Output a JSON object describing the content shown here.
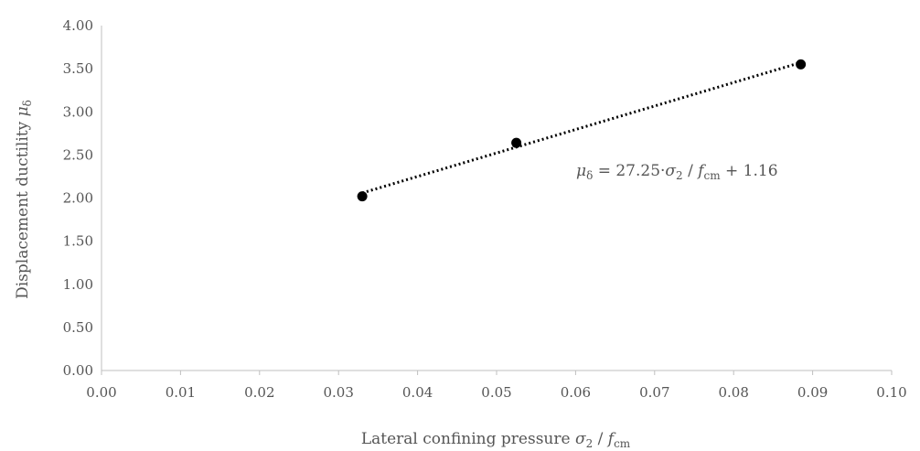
{
  "chart_data": {
    "type": "scatter",
    "xlabel": {
      "text": "Lateral confining pressure ",
      "var": "σ",
      "var_sub": "2",
      "sep": " / ",
      "f": "f",
      "f_sub": "cm"
    },
    "ylabel": {
      "text": "Displacement ductility ",
      "var": "μ",
      "var_sub": "δ"
    },
    "xlim": [
      0,
      0.1
    ],
    "ylim": [
      0,
      4
    ],
    "x_ticks": [
      "0.00",
      "0.01",
      "0.02",
      "0.03",
      "0.04",
      "0.05",
      "0.06",
      "0.07",
      "0.08",
      "0.09",
      "0.10"
    ],
    "y_ticks": [
      "0.00",
      "0.50",
      "1.00",
      "1.50",
      "2.00",
      "2.50",
      "3.00",
      "3.50",
      "4.00"
    ],
    "grid": false,
    "series": [
      {
        "points": [
          {
            "x": 0.033,
            "y": 2.02
          },
          {
            "x": 0.0525,
            "y": 2.64
          },
          {
            "x": 0.0885,
            "y": 3.55
          }
        ]
      }
    ],
    "trendline": {
      "slope": 27.25,
      "intercept": 1.16,
      "x_start": 0.033,
      "x_end": 0.0885,
      "equation": {
        "mu": "μ",
        "mu_sub": "δ",
        "eq": " = 27.25·",
        "sigma": "σ",
        "sigma_sub": "2",
        "slash": " / ",
        "f": "f",
        "f_sub": "cm",
        "tail": " + 1.16"
      }
    }
  }
}
